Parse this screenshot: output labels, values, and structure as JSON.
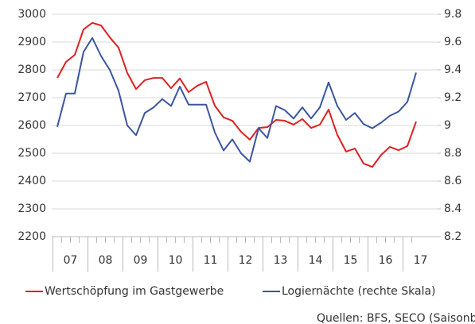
{
  "chart_data": {
    "type": "line",
    "categories": [
      null,
      "07",
      null,
      null,
      null,
      "08",
      null,
      null,
      null,
      "09",
      null,
      null,
      null,
      "10",
      null,
      null,
      null,
      "11",
      null,
      null,
      null,
      "12",
      null,
      null,
      null,
      "13",
      null,
      null,
      null,
      "14",
      null,
      null,
      null,
      "15",
      null,
      null,
      null,
      "16",
      null,
      null,
      null,
      "17"
    ],
    "series": [
      {
        "name": "Wertschöpfung im Gastgewerbe",
        "color": "#e02020",
        "values": [
          2771,
          2829,
          2854,
          2946,
          2969,
          2960,
          2917,
          2880,
          2789,
          2731,
          2763,
          2771,
          2771,
          2734,
          2769,
          2720,
          2743,
          2757,
          2671,
          2629,
          2617,
          2577,
          2549,
          2591,
          2594,
          2620,
          2617,
          2603,
          2623,
          2591,
          2603,
          2657,
          2566,
          2506,
          2517,
          2463,
          2451,
          2494,
          2523,
          2511,
          2526,
          2614
        ]
      },
      {
        "name": "Logiernächte (rechte Skala)",
        "color": "#3b55a0",
        "axis": "y2",
        "values": [
          8.99,
          9.23,
          9.23,
          9.53,
          9.63,
          9.5,
          9.4,
          9.25,
          9.0,
          8.93,
          9.09,
          9.13,
          9.19,
          9.14,
          9.28,
          9.15,
          9.15,
          9.15,
          8.95,
          8.82,
          8.9,
          8.8,
          8.74,
          8.98,
          8.91,
          9.14,
          9.11,
          9.05,
          9.13,
          9.05,
          9.13,
          9.31,
          9.14,
          9.04,
          9.09,
          9.01,
          8.98,
          9.02,
          9.07,
          9.1,
          9.17,
          9.38
        ]
      }
    ],
    "ylim": [
      2200,
      3000
    ],
    "yticks": [
      2200,
      2300,
      2400,
      2500,
      2600,
      2700,
      2800,
      2900,
      3000
    ],
    "y2lim": [
      8.2,
      9.8
    ],
    "y2ticks": [
      8.2,
      8.4,
      8.6,
      8.8,
      9,
      9.2,
      9.4,
      9.6,
      9.8
    ],
    "grid": true,
    "source": "Quellen: BFS, SECO (Saisonbereinigung"
  }
}
